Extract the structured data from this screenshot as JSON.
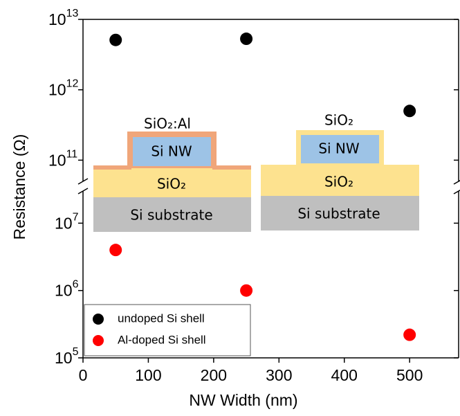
{
  "chart_data": {
    "type": "scatter",
    "xlabel": "NW Width (nm)",
    "ylabel": "Resistance (Ω)",
    "x": [
      50,
      250,
      500
    ],
    "series": [
      {
        "name": "undoped Si shell",
        "color": "#000000",
        "values": [
          5100000000000,
          5300000000000,
          500000000000
        ]
      },
      {
        "name": "Al-doped Si shell",
        "color": "#ff0000",
        "values": [
          4000000,
          1000000,
          220000
        ]
      }
    ],
    "xlim": [
      0,
      575
    ],
    "xticks": [
      0,
      100,
      200,
      300,
      400,
      500
    ],
    "log_y": true,
    "broken_y": true,
    "ylim": [
      100000,
      30000000
    ],
    "yticks": [
      {
        "value": 100000,
        "label": "10",
        "exponent": "5"
      },
      {
        "value": 1000000,
        "label": "10",
        "exponent": "6"
      },
      {
        "value": 10000000,
        "label": "10",
        "exponent": "7"
      }
    ],
    "ylim_upper": [
      50000000000,
      10000000000000
    ],
    "yticks_upper": [
      {
        "value": 100000000000,
        "label": "10",
        "exponent": "11"
      },
      {
        "value": 1000000000000,
        "label": "10",
        "exponent": "12"
      },
      {
        "value": 10000000000000,
        "label": "10",
        "exponent": "13"
      }
    ],
    "legend": "lower left"
  },
  "inset": {
    "left": {
      "shell": "SiO₂:Al",
      "core": "Si NW",
      "oxide": "SiO₂",
      "substrate": "Si substrate"
    },
    "right": {
      "shell": "SiO₂",
      "core": "Si NW",
      "oxide": "SiO₂",
      "substrate": "Si substrate"
    }
  }
}
